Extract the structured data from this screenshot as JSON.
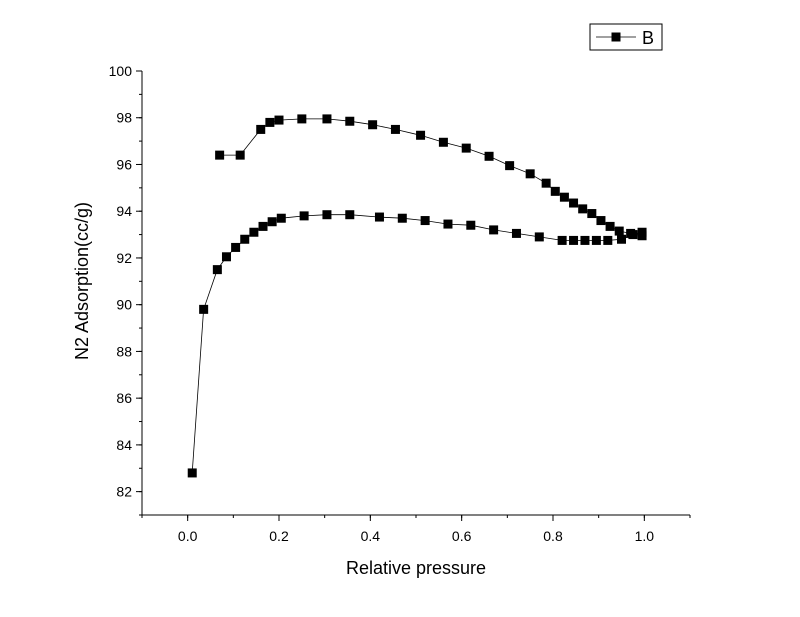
{
  "chart_data": {
    "type": "scatter",
    "title": "",
    "xlabel": "Relative pressure",
    "ylabel": "N2 Adsorption(cc/g)",
    "xlim": [
      -0.1,
      1.1
    ],
    "ylim": [
      81,
      100
    ],
    "xticks": [
      0.0,
      0.2,
      0.4,
      0.6,
      0.8,
      1.0
    ],
    "xtick_labels": [
      "0.0",
      "0.2",
      "0.4",
      "0.6",
      "0.8",
      "1.0"
    ],
    "yticks": [
      82,
      84,
      86,
      88,
      90,
      92,
      94,
      96,
      98,
      100
    ],
    "ytick_labels": [
      "82",
      "84",
      "86",
      "88",
      "90",
      "92",
      "94",
      "96",
      "98",
      "100"
    ],
    "grid": false,
    "legend_position": "top-right",
    "series": [
      {
        "name": "B",
        "color": "#000000",
        "marker": "square",
        "line": "solid",
        "adsorption": {
          "x": [
            0.01,
            0.035,
            0.065,
            0.085,
            0.105,
            0.125,
            0.145,
            0.165,
            0.185,
            0.205,
            0.255,
            0.305,
            0.355,
            0.42,
            0.47,
            0.52,
            0.57,
            0.62,
            0.67,
            0.72,
            0.77,
            0.82,
            0.845,
            0.87,
            0.895,
            0.92,
            0.95,
            0.975,
            0.995
          ],
          "y": [
            82.8,
            89.8,
            91.5,
            92.05,
            92.45,
            92.8,
            93.1,
            93.35,
            93.55,
            93.7,
            93.8,
            93.85,
            93.85,
            93.75,
            93.7,
            93.6,
            93.45,
            93.4,
            93.2,
            93.05,
            92.9,
            92.75,
            92.75,
            92.75,
            92.75,
            92.75,
            92.8,
            93.0,
            93.1
          ]
        },
        "desorption": {
          "x": [
            0.995,
            0.97,
            0.945,
            0.925,
            0.905,
            0.885,
            0.865,
            0.845,
            0.825,
            0.805,
            0.785,
            0.75,
            0.705,
            0.66,
            0.61,
            0.56,
            0.51,
            0.455,
            0.405,
            0.355,
            0.305,
            0.25,
            0.2,
            0.18,
            0.16,
            0.115,
            0.07
          ],
          "y": [
            92.95,
            93.05,
            93.15,
            93.35,
            93.6,
            93.9,
            94.1,
            94.35,
            94.6,
            94.85,
            95.2,
            95.6,
            95.95,
            96.35,
            96.7,
            96.95,
            97.25,
            97.5,
            97.7,
            97.85,
            97.95,
            97.95,
            97.9,
            97.8,
            97.5,
            96.4,
            96.4
          ]
        }
      }
    ]
  }
}
